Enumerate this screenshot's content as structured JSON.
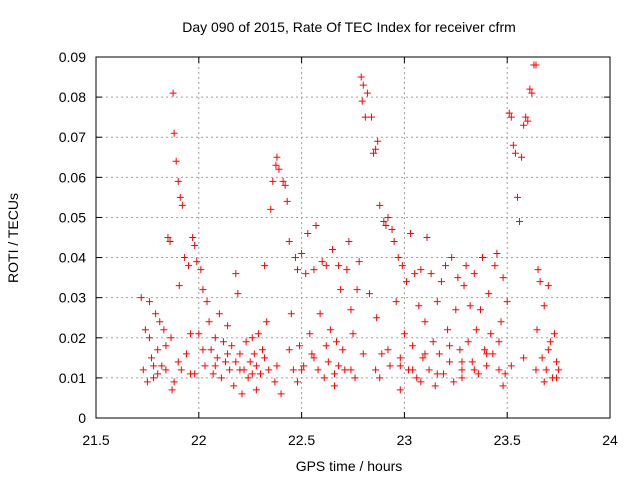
{
  "chart_data": {
    "type": "scatter",
    "title": "Day 090 of 2015, Rate Of TEC Index for receiver cfrm",
    "xlabel": "GPS time / hours",
    "ylabel": "ROTI / TECUs",
    "xlim": [
      21.5,
      24
    ],
    "ylim": [
      0,
      0.09
    ],
    "xticks": [
      "21.5",
      "22",
      "22.5",
      "23",
      "23.5",
      "24"
    ],
    "yticks": [
      "0",
      "0.01",
      "0.02",
      "0.03",
      "0.04",
      "0.05",
      "0.06",
      "0.07",
      "0.08",
      "0.09"
    ],
    "grid": true,
    "marker": "+",
    "color": "#ff0000",
    "series": [
      {
        "name": "ROTI",
        "points": [
          [
            21.72,
            0.03
          ],
          [
            21.73,
            0.012
          ],
          [
            21.74,
            0.022
          ],
          [
            21.75,
            0.009
          ],
          [
            21.76,
            0.029
          ],
          [
            21.77,
            0.015
          ],
          [
            21.78,
            0.013
          ],
          [
            21.79,
            0.026
          ],
          [
            21.8,
            0.011
          ],
          [
            21.81,
            0.024
          ],
          [
            21.82,
            0.013
          ],
          [
            21.83,
            0.022
          ],
          [
            21.84,
            0.018
          ],
          [
            21.85,
            0.045
          ],
          [
            21.86,
            0.044
          ],
          [
            21.865,
            0.02
          ],
          [
            21.87,
            0.007
          ],
          [
            21.875,
            0.081
          ],
          [
            21.88,
            0.071
          ],
          [
            21.89,
            0.064
          ],
          [
            21.9,
            0.059
          ],
          [
            21.905,
            0.033
          ],
          [
            21.91,
            0.055
          ],
          [
            21.915,
            0.012
          ],
          [
            21.92,
            0.053
          ],
          [
            21.93,
            0.04
          ],
          [
            21.94,
            0.016
          ],
          [
            21.95,
            0.038
          ],
          [
            21.96,
            0.011
          ],
          [
            21.97,
            0.045
          ],
          [
            21.98,
            0.043
          ],
          [
            21.99,
            0.039
          ],
          [
            22.0,
            0.021
          ],
          [
            22.01,
            0.037
          ],
          [
            22.02,
            0.032
          ],
          [
            22.03,
            0.013
          ],
          [
            22.04,
            0.029
          ],
          [
            22.05,
            0.024
          ],
          [
            22.06,
            0.017
          ],
          [
            22.07,
            0.011
          ],
          [
            22.08,
            0.02
          ],
          [
            22.09,
            0.015
          ],
          [
            22.1,
            0.026
          ],
          [
            22.11,
            0.01
          ],
          [
            22.12,
            0.019
          ],
          [
            22.13,
            0.014
          ],
          [
            22.14,
            0.023
          ],
          [
            22.15,
            0.012
          ],
          [
            22.16,
            0.018
          ],
          [
            22.17,
            0.008
          ],
          [
            22.18,
            0.036
          ],
          [
            22.19,
            0.031
          ],
          [
            22.2,
            0.016
          ],
          [
            22.21,
            0.006
          ],
          [
            22.22,
            0.012
          ],
          [
            22.23,
            0.019
          ],
          [
            22.24,
            0.01
          ],
          [
            22.25,
            0.014
          ],
          [
            22.26,
            0.02
          ],
          [
            22.27,
            0.016
          ],
          [
            22.28,
            0.013
          ],
          [
            22.29,
            0.021
          ],
          [
            22.3,
            0.011
          ],
          [
            22.31,
            0.017
          ],
          [
            22.32,
            0.038
          ],
          [
            22.33,
            0.024
          ],
          [
            22.34,
            0.012
          ],
          [
            22.35,
            0.052
          ],
          [
            22.36,
            0.059
          ],
          [
            22.37,
            0.009
          ],
          [
            22.375,
            0.063
          ],
          [
            22.38,
            0.065
          ],
          [
            22.39,
            0.062
          ],
          [
            22.4,
            0.006
          ],
          [
            22.41,
            0.059
          ],
          [
            22.42,
            0.058
          ],
          [
            22.43,
            0.054
          ],
          [
            22.44,
            0.044
          ],
          [
            22.45,
            0.026
          ],
          [
            22.46,
            0.012
          ],
          [
            22.47,
            0.04
          ],
          [
            22.48,
            0.037
          ],
          [
            22.49,
            0.018
          ],
          [
            22.5,
            0.041
          ],
          [
            22.51,
            0.013
          ],
          [
            22.52,
            0.036
          ],
          [
            22.53,
            0.046
          ],
          [
            22.54,
            0.021
          ],
          [
            22.55,
            0.016
          ],
          [
            22.56,
            0.037
          ],
          [
            22.57,
            0.048
          ],
          [
            22.58,
            0.012
          ],
          [
            22.59,
            0.026
          ],
          [
            22.6,
            0.039
          ],
          [
            22.61,
            0.01
          ],
          [
            22.62,
            0.038
          ],
          [
            22.63,
            0.014
          ],
          [
            22.64,
            0.022
          ],
          [
            22.65,
            0.042
          ],
          [
            22.66,
            0.011
          ],
          [
            22.67,
            0.019
          ],
          [
            22.68,
            0.038
          ],
          [
            22.69,
            0.032
          ],
          [
            22.7,
            0.017
          ],
          [
            22.71,
            0.012
          ],
          [
            22.72,
            0.037
          ],
          [
            22.73,
            0.044
          ],
          [
            22.74,
            0.027
          ],
          [
            22.75,
            0.021
          ],
          [
            22.76,
            0.01
          ],
          [
            22.77,
            0.032
          ],
          [
            22.78,
            0.039
          ],
          [
            22.79,
            0.085
          ],
          [
            22.795,
            0.079
          ],
          [
            22.8,
            0.083
          ],
          [
            22.81,
            0.075
          ],
          [
            22.82,
            0.081
          ],
          [
            22.83,
            0.031
          ],
          [
            22.84,
            0.075
          ],
          [
            22.85,
            0.066
          ],
          [
            22.86,
            0.067
          ],
          [
            22.865,
            0.025
          ],
          [
            22.87,
            0.069
          ],
          [
            22.88,
            0.053
          ],
          [
            22.89,
            0.016
          ],
          [
            22.9,
            0.049
          ],
          [
            22.91,
            0.048
          ],
          [
            22.92,
            0.05
          ],
          [
            22.93,
            0.013
          ],
          [
            22.94,
            0.047
          ],
          [
            22.95,
            0.044
          ],
          [
            22.96,
            0.029
          ],
          [
            22.97,
            0.04
          ],
          [
            22.98,
            0.015
          ],
          [
            22.99,
            0.038
          ],
          [
            23.0,
            0.021
          ],
          [
            23.01,
            0.034
          ],
          [
            23.02,
            0.012
          ],
          [
            23.03,
            0.046
          ],
          [
            23.04,
            0.018
          ],
          [
            23.05,
            0.036
          ],
          [
            23.06,
            0.01
          ],
          [
            23.07,
            0.028
          ],
          [
            23.08,
            0.037
          ],
          [
            23.09,
            0.015
          ],
          [
            23.1,
            0.024
          ],
          [
            23.11,
            0.045
          ],
          [
            23.12,
            0.012
          ],
          [
            23.13,
            0.036
          ],
          [
            23.14,
            0.019
          ],
          [
            23.15,
            0.008
          ],
          [
            23.16,
            0.029
          ],
          [
            23.17,
            0.016
          ],
          [
            23.18,
            0.034
          ],
          [
            23.19,
            0.011
          ],
          [
            23.2,
            0.038
          ],
          [
            23.21,
            0.022
          ],
          [
            23.22,
            0.014
          ],
          [
            23.23,
            0.04
          ],
          [
            23.24,
            0.009
          ],
          [
            23.25,
            0.027
          ],
          [
            23.26,
            0.035
          ],
          [
            23.27,
            0.017
          ],
          [
            23.28,
            0.012
          ],
          [
            23.29,
            0.033
          ],
          [
            23.3,
            0.038
          ],
          [
            23.31,
            0.019
          ],
          [
            23.32,
            0.028
          ],
          [
            23.33,
            0.014
          ],
          [
            23.34,
            0.036
          ],
          [
            23.35,
            0.022
          ],
          [
            23.36,
            0.011
          ],
          [
            23.37,
            0.027
          ],
          [
            23.38,
            0.04
          ],
          [
            23.39,
            0.017
          ],
          [
            23.4,
            0.013
          ],
          [
            23.41,
            0.031
          ],
          [
            23.42,
            0.021
          ],
          [
            23.43,
            0.016
          ],
          [
            23.44,
            0.038
          ],
          [
            23.45,
            0.041
          ],
          [
            23.46,
            0.012
          ],
          [
            23.47,
            0.024
          ],
          [
            23.48,
            0.035
          ],
          [
            23.49,
            0.011
          ],
          [
            23.5,
            0.029
          ],
          [
            23.51,
            0.076
          ],
          [
            23.52,
            0.075
          ],
          [
            23.53,
            0.068
          ],
          [
            23.54,
            0.066
          ],
          [
            23.55,
            0.055
          ],
          [
            23.56,
            0.049
          ],
          [
            23.57,
            0.065
          ],
          [
            23.58,
            0.073
          ],
          [
            23.59,
            0.075
          ],
          [
            23.6,
            0.074
          ],
          [
            23.61,
            0.082
          ],
          [
            23.62,
            0.081
          ],
          [
            23.63,
            0.088
          ],
          [
            23.64,
            0.088
          ],
          [
            23.645,
            0.022
          ],
          [
            23.65,
            0.037
          ],
          [
            23.66,
            0.034
          ],
          [
            23.67,
            0.015
          ],
          [
            23.68,
            0.028
          ],
          [
            23.69,
            0.012
          ],
          [
            23.7,
            0.033
          ],
          [
            23.71,
            0.019
          ],
          [
            23.72,
            0.01
          ],
          [
            23.73,
            0.021
          ],
          [
            23.74,
            0.014
          ],
          [
            23.75,
            0.012
          ],
          [
            21.76,
            0.02
          ],
          [
            21.8,
            0.017
          ],
          [
            21.84,
            0.012
          ],
          [
            21.9,
            0.014
          ],
          [
            21.96,
            0.021
          ],
          [
            22.02,
            0.017
          ],
          [
            22.08,
            0.013
          ],
          [
            22.14,
            0.016
          ],
          [
            22.2,
            0.012
          ],
          [
            22.26,
            0.011
          ],
          [
            22.32,
            0.015
          ],
          [
            22.38,
            0.013
          ],
          [
            22.44,
            0.017
          ],
          [
            22.5,
            0.012
          ],
          [
            22.56,
            0.015
          ],
          [
            22.62,
            0.018
          ],
          [
            22.68,
            0.013
          ],
          [
            22.74,
            0.012
          ],
          [
            22.8,
            0.016
          ],
          [
            22.86,
            0.012
          ],
          [
            22.92,
            0.017
          ],
          [
            22.98,
            0.013
          ],
          [
            23.04,
            0.012
          ],
          [
            23.1,
            0.016
          ],
          [
            23.16,
            0.011
          ],
          [
            23.22,
            0.018
          ],
          [
            23.28,
            0.014
          ],
          [
            23.34,
            0.012
          ],
          [
            23.4,
            0.016
          ],
          [
            23.46,
            0.019
          ],
          [
            23.52,
            0.013
          ],
          [
            23.58,
            0.015
          ],
          [
            23.64,
            0.012
          ],
          [
            23.7,
            0.017
          ],
          [
            23.74,
            0.01
          ],
          [
            21.78,
            0.01
          ],
          [
            21.98,
            0.011
          ],
          [
            22.18,
            0.014
          ],
          [
            22.48,
            0.009
          ],
          [
            22.66,
            0.008
          ],
          [
            22.88,
            0.01
          ],
          [
            23.08,
            0.009
          ],
          [
            23.28,
            0.01
          ],
          [
            23.48,
            0.008
          ],
          [
            23.68,
            0.009
          ],
          [
            21.88,
            0.009
          ],
          [
            22.28,
            0.007
          ],
          [
            22.98,
            0.007
          ]
        ]
      }
    ]
  }
}
